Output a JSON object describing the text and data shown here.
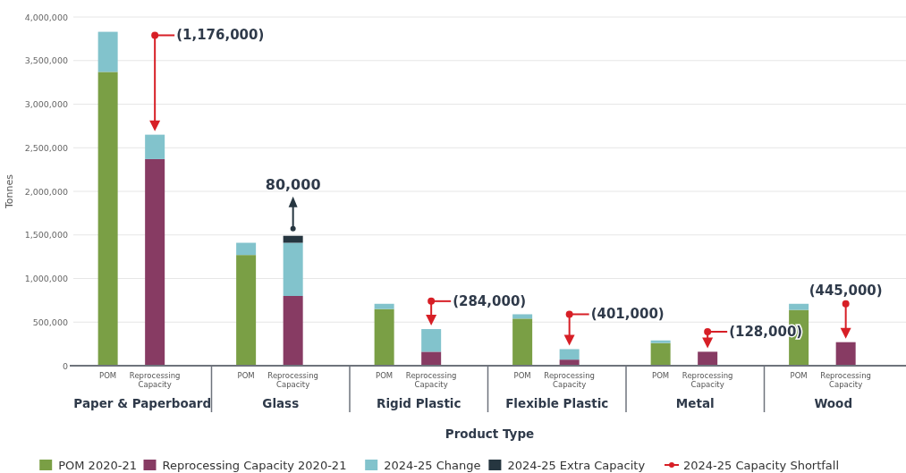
{
  "chart_data": {
    "type": "bar",
    "stacked": true,
    "xlabel": "Product Type",
    "ylabel": "Tonnes",
    "categories": [
      "POM",
      "Reprocessing Capacity",
      "POM",
      "Reprocessing Capacity",
      "POM",
      "Reprocessing Capacity",
      "POM",
      "Reprocessing Capacity",
      "POM",
      "Reprocessing Capacity",
      "POM",
      "Reprocessing Capacity"
    ],
    "annotations": [
      "Paper & Paperboard",
      "Glass",
      "Rigid Plastic",
      "Flexible Plastic",
      "Metal",
      "Wood",
      "(1,176,000)",
      "(284,000)",
      "(401,000)",
      "(128,000)",
      "(445,000)"
    ],
    "ylim": [
      0,
      4000000
    ],
    "yticks": [
      0,
      {
        "value": 500000,
        "label": "500,000"
      },
      {
        "value": 1000000,
        "label": "1,000,000"
      },
      {
        "value": 1500000,
        "label": "1,500,000"
      },
      {
        "value": 2000000,
        "label": "2,000,000"
      },
      {
        "value": 2500000,
        "label": "2,500,000"
      },
      {
        "value": 3000000,
        "label": "3,000,000"
      },
      {
        "value": 3500000,
        "label": "3,500,000"
      },
      {
        "value": 4000000,
        "label": "4,000,000"
      }
    ],
    "grid": "y",
    "legend": "bottom",
    "series": [
      {
        "name": "POM 2020-21",
        "color": "#7a9f45",
        "values": [
          3370000,
          null,
          1270000,
          null,
          650000,
          null,
          540000,
          null,
          260000,
          null,
          640000,
          null
        ]
      },
      {
        "name": "Reprocessing Capacity 2020-21",
        "color": "#873b63",
        "values": [
          null,
          2370000,
          null,
          800000,
          null,
          160000,
          null,
          70000,
          null,
          160000,
          null,
          270000
        ]
      },
      {
        "name": "2024-25 Change",
        "color": "#82c3cc",
        "values": [
          460000,
          280000,
          140000,
          610000,
          60000,
          260000,
          50000,
          120000,
          30000,
          null,
          70000,
          null
        ]
      },
      {
        "name": "2024-25 Extra Capacity",
        "color": "#263640",
        "values": [
          null,
          null,
          null,
          80000,
          null,
          null,
          null,
          null,
          null,
          null,
          null,
          null
        ],
        "value_labels": [
          null,
          null,
          null,
          "80,000",
          null,
          null,
          null,
          null,
          null,
          null,
          null,
          null
        ]
      },
      {
        "name": "2024-25 Capacity Shortfall",
        "type": "line",
        "marker": "circle",
        "color": "#d71f26",
        "values": [
          null,
          3790000,
          null,
          null,
          null,
          740000,
          null,
          590000,
          null,
          390000,
          null,
          710000
        ]
      }
    ]
  }
}
